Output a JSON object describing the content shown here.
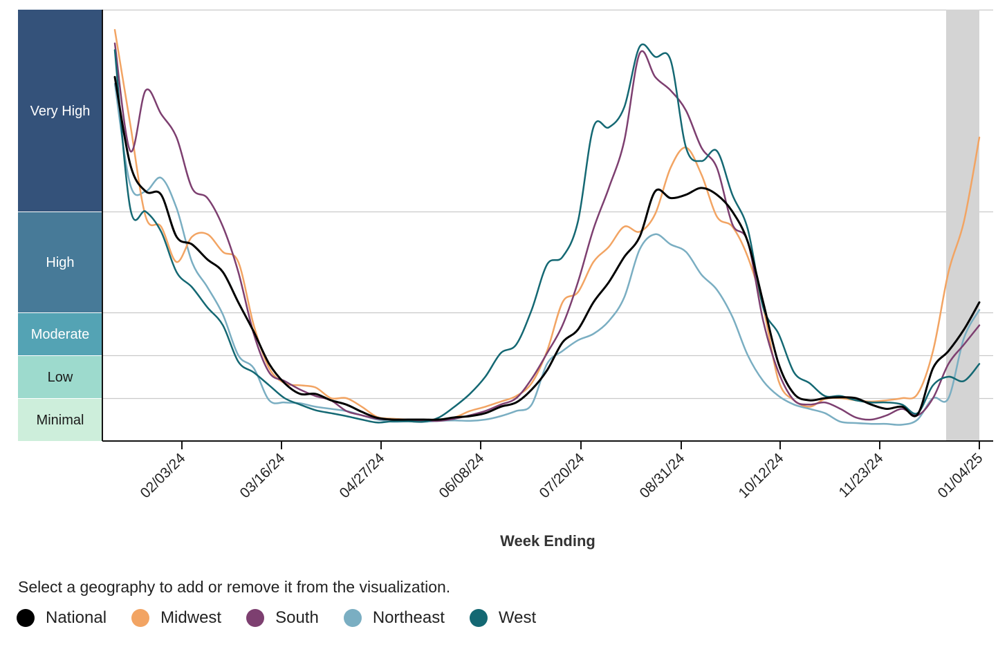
{
  "chart_data": {
    "type": "line",
    "xlabel": "Week Ending",
    "x_ticks": [
      "02/03/24",
      "03/16/24",
      "04/27/24",
      "06/08/24",
      "07/20/24",
      "08/31/24",
      "10/12/24",
      "11/23/24",
      "01/04/25"
    ],
    "levels": [
      {
        "name": "Very High",
        "color": "#34527a",
        "text_color": "#ffffff"
      },
      {
        "name": "High",
        "color": "#477a98",
        "text_color": "#ffffff"
      },
      {
        "name": "Moderate",
        "color": "#54a3b4",
        "text_color": "#ffffff"
      },
      {
        "name": "Low",
        "color": "#9ddacd",
        "text_color": "#1a1a1a"
      },
      {
        "name": "Minimal",
        "color": "#cdeedb",
        "text_color": "#1a1a1a"
      }
    ],
    "x_start": "01/06/24",
    "x_end": "01/04/25",
    "shaded_from": "12/21/24",
    "shaded_color": "#d4d4d4",
    "series": [
      {
        "name": "National",
        "color": "#000000",
        "width": 3,
        "values": [
          [
            0,
            7.5
          ],
          [
            1,
            6.2
          ],
          [
            2,
            5.8
          ],
          [
            3,
            5.75
          ],
          [
            4,
            5.0
          ],
          [
            5,
            4.85
          ],
          [
            6,
            4.55
          ],
          [
            7,
            4.3
          ],
          [
            8,
            3.7
          ],
          [
            9,
            3.05
          ],
          [
            10,
            2.3
          ],
          [
            11,
            1.85
          ],
          [
            12,
            1.6
          ],
          [
            13,
            1.6
          ],
          [
            14,
            1.45
          ],
          [
            15,
            1.35
          ],
          [
            16,
            1.18
          ],
          [
            17,
            1.04
          ],
          [
            18,
            1.0
          ],
          [
            19,
            1.0
          ],
          [
            20,
            1.0
          ],
          [
            21,
            1.0
          ],
          [
            22,
            1.05
          ],
          [
            23,
            1.08
          ],
          [
            24,
            1.15
          ],
          [
            25,
            1.3
          ],
          [
            26,
            1.4
          ],
          [
            27,
            1.7
          ],
          [
            28,
            2.15
          ],
          [
            29,
            2.8
          ],
          [
            30,
            3.1
          ],
          [
            31,
            3.7
          ],
          [
            32,
            4.1
          ],
          [
            33,
            4.6
          ],
          [
            34,
            5.0
          ],
          [
            35,
            5.8
          ],
          [
            36,
            5.7
          ],
          [
            37,
            5.75
          ],
          [
            38,
            5.85
          ],
          [
            39,
            5.75
          ],
          [
            40,
            5.5
          ],
          [
            41,
            4.9
          ],
          [
            42,
            3.7
          ],
          [
            43,
            2.3
          ],
          [
            44,
            1.6
          ],
          [
            45,
            1.45
          ],
          [
            46,
            1.5
          ],
          [
            47,
            1.52
          ],
          [
            48,
            1.5
          ],
          [
            49,
            1.35
          ],
          [
            50,
            1.25
          ],
          [
            51,
            1.3
          ],
          [
            52,
            1.12
          ],
          [
            53,
            2.2
          ],
          [
            54,
            2.6
          ],
          [
            55,
            3.1
          ],
          [
            56,
            3.7
          ]
        ]
      },
      {
        "name": "Midwest",
        "color": "#f2a463",
        "width": 2.5,
        "values": [
          [
            0,
            8.2
          ],
          [
            1,
            6.8
          ],
          [
            2,
            5.4
          ],
          [
            3,
            5.2
          ],
          [
            4,
            4.5
          ],
          [
            5,
            5.0
          ],
          [
            6,
            5.05
          ],
          [
            7,
            4.7
          ],
          [
            8,
            4.5
          ],
          [
            9,
            3.2
          ],
          [
            10,
            2.2
          ],
          [
            11,
            1.85
          ],
          [
            12,
            1.8
          ],
          [
            13,
            1.75
          ],
          [
            14,
            1.5
          ],
          [
            15,
            1.5
          ],
          [
            16,
            1.3
          ],
          [
            17,
            1.06
          ],
          [
            18,
            1.02
          ],
          [
            19,
            1.0
          ],
          [
            20,
            0.97
          ],
          [
            21,
            1.0
          ],
          [
            22,
            1.05
          ],
          [
            23,
            1.2
          ],
          [
            24,
            1.3
          ],
          [
            25,
            1.42
          ],
          [
            26,
            1.55
          ],
          [
            27,
            1.85
          ],
          [
            28,
            2.6
          ],
          [
            29,
            3.7
          ],
          [
            30,
            3.9
          ],
          [
            31,
            4.5
          ],
          [
            32,
            4.8
          ],
          [
            33,
            5.2
          ],
          [
            34,
            5.1
          ],
          [
            35,
            5.45
          ],
          [
            36,
            6.15
          ],
          [
            37,
            6.45
          ],
          [
            38,
            6.05
          ],
          [
            39,
            5.4
          ],
          [
            40,
            5.2
          ],
          [
            41,
            4.6
          ],
          [
            42,
            3.6
          ],
          [
            43,
            1.9
          ],
          [
            44,
            1.45
          ],
          [
            45,
            1.3
          ],
          [
            46,
            1.48
          ],
          [
            47,
            1.5
          ],
          [
            48,
            1.45
          ],
          [
            49,
            1.42
          ],
          [
            50,
            1.45
          ],
          [
            51,
            1.5
          ],
          [
            52,
            1.6
          ],
          [
            53,
            2.6
          ],
          [
            54,
            4.3
          ],
          [
            55,
            5.3
          ],
          [
            56,
            6.6
          ]
        ]
      },
      {
        "name": "South",
        "color": "#7d3f70",
        "width": 2.5,
        "values": [
          [
            0,
            8.0
          ],
          [
            1,
            6.4
          ],
          [
            2,
            7.3
          ],
          [
            3,
            6.95
          ],
          [
            4,
            6.6
          ],
          [
            5,
            5.85
          ],
          [
            6,
            5.7
          ],
          [
            7,
            5.2
          ],
          [
            8,
            4.3
          ],
          [
            9,
            3.0
          ],
          [
            10,
            2.1
          ],
          [
            11,
            1.9
          ],
          [
            12,
            1.7
          ],
          [
            13,
            1.55
          ],
          [
            14,
            1.45
          ],
          [
            15,
            1.2
          ],
          [
            16,
            1.1
          ],
          [
            17,
            1.02
          ],
          [
            18,
            1.0
          ],
          [
            19,
            0.99
          ],
          [
            20,
            0.98
          ],
          [
            21,
            0.97
          ],
          [
            22,
            1.02
          ],
          [
            23,
            1.1
          ],
          [
            24,
            1.2
          ],
          [
            25,
            1.35
          ],
          [
            26,
            1.5
          ],
          [
            27,
            1.95
          ],
          [
            28,
            2.55
          ],
          [
            29,
            3.2
          ],
          [
            30,
            4.1
          ],
          [
            31,
            5.15
          ],
          [
            32,
            5.85
          ],
          [
            33,
            6.55
          ],
          [
            34,
            7.85
          ],
          [
            35,
            7.5
          ],
          [
            36,
            7.3
          ],
          [
            37,
            7.0
          ],
          [
            38,
            6.45
          ],
          [
            39,
            6.15
          ],
          [
            40,
            5.25
          ],
          [
            41,
            4.9
          ],
          [
            42,
            3.3
          ],
          [
            43,
            2.1
          ],
          [
            44,
            1.45
          ],
          [
            45,
            1.35
          ],
          [
            46,
            1.4
          ],
          [
            47,
            1.25
          ],
          [
            48,
            1.05
          ],
          [
            49,
            1.0
          ],
          [
            50,
            1.1
          ],
          [
            51,
            1.25
          ],
          [
            52,
            1.1
          ],
          [
            53,
            1.5
          ],
          [
            54,
            2.3
          ],
          [
            55,
            2.75
          ],
          [
            56,
            3.2
          ]
        ]
      },
      {
        "name": "Northeast",
        "color": "#7aaec2",
        "width": 2.5,
        "values": [
          [
            0,
            7.4
          ],
          [
            1,
            5.9
          ],
          [
            2,
            5.8
          ],
          [
            3,
            6.0
          ],
          [
            4,
            5.55
          ],
          [
            5,
            4.5
          ],
          [
            6,
            4.0
          ],
          [
            7,
            3.45
          ],
          [
            8,
            2.5
          ],
          [
            9,
            2.2
          ],
          [
            10,
            1.45
          ],
          [
            11,
            1.4
          ],
          [
            12,
            1.38
          ],
          [
            13,
            1.3
          ],
          [
            14,
            1.25
          ],
          [
            15,
            1.2
          ],
          [
            16,
            1.1
          ],
          [
            17,
            1.0
          ],
          [
            18,
            0.95
          ],
          [
            19,
            0.96
          ],
          [
            20,
            0.95
          ],
          [
            21,
            0.97
          ],
          [
            22,
            0.98
          ],
          [
            23,
            0.97
          ],
          [
            24,
            1.0
          ],
          [
            25,
            1.08
          ],
          [
            26,
            1.2
          ],
          [
            27,
            1.35
          ],
          [
            28,
            2.3
          ],
          [
            29,
            2.6
          ],
          [
            30,
            2.85
          ],
          [
            31,
            3.0
          ],
          [
            32,
            3.3
          ],
          [
            33,
            3.8
          ],
          [
            34,
            4.75
          ],
          [
            35,
            5.05
          ],
          [
            36,
            4.85
          ],
          [
            37,
            4.7
          ],
          [
            38,
            4.25
          ],
          [
            39,
            3.95
          ],
          [
            40,
            3.4
          ],
          [
            41,
            2.5
          ],
          [
            42,
            1.9
          ],
          [
            43,
            1.55
          ],
          [
            44,
            1.35
          ],
          [
            45,
            1.25
          ],
          [
            46,
            1.15
          ],
          [
            47,
            0.95
          ],
          [
            48,
            0.92
          ],
          [
            49,
            0.9
          ],
          [
            50,
            0.9
          ],
          [
            51,
            0.88
          ],
          [
            52,
            1.0
          ],
          [
            53,
            1.5
          ],
          [
            54,
            1.5
          ],
          [
            55,
            2.9
          ],
          [
            56,
            3.55
          ]
        ]
      },
      {
        "name": "West",
        "color": "#146873",
        "width": 2.5,
        "values": [
          [
            0,
            7.9
          ],
          [
            1,
            5.55
          ],
          [
            2,
            5.5
          ],
          [
            3,
            5.1
          ],
          [
            4,
            4.3
          ],
          [
            5,
            4.0
          ],
          [
            6,
            3.6
          ],
          [
            7,
            3.2
          ],
          [
            8,
            2.35
          ],
          [
            9,
            2.1
          ],
          [
            10,
            1.8
          ],
          [
            11,
            1.5
          ],
          [
            12,
            1.35
          ],
          [
            13,
            1.22
          ],
          [
            14,
            1.15
          ],
          [
            15,
            1.08
          ],
          [
            16,
            1.0
          ],
          [
            17,
            0.93
          ],
          [
            18,
            0.96
          ],
          [
            19,
            0.96
          ],
          [
            20,
            0.95
          ],
          [
            21,
            1.05
          ],
          [
            22,
            1.3
          ],
          [
            23,
            1.6
          ],
          [
            24,
            2.0
          ],
          [
            25,
            2.55
          ],
          [
            26,
            2.75
          ],
          [
            27,
            3.55
          ],
          [
            28,
            4.45
          ],
          [
            29,
            4.6
          ],
          [
            30,
            5.3
          ],
          [
            31,
            6.75
          ],
          [
            32,
            6.75
          ],
          [
            33,
            7.05
          ],
          [
            34,
            7.95
          ],
          [
            35,
            7.8
          ],
          [
            36,
            7.75
          ],
          [
            37,
            6.45
          ],
          [
            38,
            6.25
          ],
          [
            39,
            6.4
          ],
          [
            40,
            5.75
          ],
          [
            41,
            5.15
          ],
          [
            42,
            3.6
          ],
          [
            43,
            3.0
          ],
          [
            44,
            2.1
          ],
          [
            45,
            1.85
          ],
          [
            46,
            1.55
          ],
          [
            47,
            1.55
          ],
          [
            48,
            1.45
          ],
          [
            49,
            1.4
          ],
          [
            50,
            1.4
          ],
          [
            51,
            1.35
          ],
          [
            52,
            1.15
          ],
          [
            53,
            1.8
          ],
          [
            54,
            2.0
          ],
          [
            55,
            1.9
          ],
          [
            56,
            2.3
          ]
        ]
      }
    ]
  },
  "instructions": "Select a geography to add or remove it from the visualization."
}
